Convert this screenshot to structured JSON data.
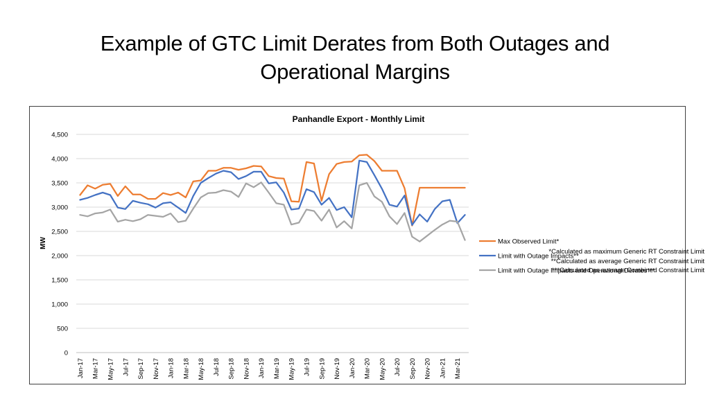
{
  "slide": {
    "title_line1": "Example of GTC Limit Derates from Both Outages and",
    "title_line2": "Operational Margins"
  },
  "footnotes": [
    "*Calculated as maximum Generic RT Constraint Limit",
    "**Calculated as average Generic RT Constraint Limit",
    "***Calculated as average Combined Constraint Limit"
  ],
  "chart_data": {
    "type": "line",
    "title": "Panhandle Export - Monthly Limit",
    "xlabel": "",
    "ylabel": "MW",
    "ylim": [
      0,
      4500
    ],
    "yticks": [
      0,
      500,
      1000,
      1500,
      2000,
      2500,
      3000,
      3500,
      4000,
      4500
    ],
    "ytick_labels": [
      "0",
      "500",
      "1,000",
      "1,500",
      "2,000",
      "2,500",
      "3,000",
      "3,500",
      "4,000",
      "4,500"
    ],
    "grid": true,
    "legend_position": "right",
    "categories": [
      "Jan-17",
      "Feb-17",
      "Mar-17",
      "Apr-17",
      "May-17",
      "Jun-17",
      "Jul-17",
      "Aug-17",
      "Sep-17",
      "Oct-17",
      "Nov-17",
      "Dec-17",
      "Jan-18",
      "Feb-18",
      "Mar-18",
      "Apr-18",
      "May-18",
      "Jun-18",
      "Jul-18",
      "Aug-18",
      "Sep-18",
      "Oct-18",
      "Nov-18",
      "Dec-18",
      "Jan-19",
      "Feb-19",
      "Mar-19",
      "Apr-19",
      "May-19",
      "Jun-19",
      "Jul-19",
      "Aug-19",
      "Sep-19",
      "Oct-19",
      "Nov-19",
      "Dec-19",
      "Jan-20",
      "Feb-20",
      "Mar-20",
      "Apr-20",
      "May-20",
      "Jun-20",
      "Jul-20",
      "Aug-20",
      "Sep-20",
      "Oct-20",
      "Nov-20",
      "Dec-20",
      "Jan-21",
      "Feb-21",
      "Mar-21",
      "Apr-21"
    ],
    "visible_tick_labels": [
      "Jan-17",
      "Mar-17",
      "May-17",
      "Jul-17",
      "Sep-17",
      "Nov-17",
      "Jan-18",
      "Mar-18",
      "May-18",
      "Jul-18",
      "Sep-18",
      "Nov-18",
      "Jan-19",
      "Mar-19",
      "May-19",
      "Jul-19",
      "Sep-19",
      "Nov-19",
      "Jan-20",
      "Mar-20",
      "May-20",
      "Jul-20",
      "Sep-20",
      "Nov-20",
      "Jan-21",
      "Mar-21"
    ],
    "series": [
      {
        "name": "Max Observed Limit*",
        "color": "#ED7D31",
        "values": [
          3250,
          3450,
          3380,
          3460,
          3480,
          3230,
          3430,
          3260,
          3260,
          3170,
          3170,
          3290,
          3250,
          3300,
          3200,
          3530,
          3550,
          3750,
          3750,
          3810,
          3810,
          3770,
          3800,
          3850,
          3840,
          3640,
          3600,
          3590,
          3120,
          3110,
          3930,
          3900,
          3130,
          3680,
          3890,
          3930,
          3940,
          4070,
          4080,
          3950,
          3750,
          3750,
          3750,
          3390,
          2620,
          3400,
          3400,
          3400,
          3400,
          3400,
          3400,
          3400
        ]
      },
      {
        "name": "Limit with Outage Impacts**",
        "color": "#4472C4",
        "values": [
          3150,
          3190,
          3250,
          3300,
          3250,
          2990,
          2960,
          3130,
          3090,
          3060,
          2990,
          3080,
          3100,
          2990,
          2880,
          3230,
          3500,
          3600,
          3690,
          3750,
          3720,
          3580,
          3640,
          3730,
          3730,
          3490,
          3510,
          3300,
          2950,
          2970,
          3370,
          3310,
          3050,
          3190,
          2940,
          3000,
          2790,
          3960,
          3930,
          3660,
          3380,
          3050,
          3010,
          3240,
          2630,
          2850,
          2700,
          2960,
          3120,
          3150,
          2670,
          2840
        ]
      },
      {
        "name": "Limit with Outage Impacts and Operational Derates***",
        "color": "#A5A5A5",
        "values": [
          2840,
          2810,
          2870,
          2890,
          2950,
          2700,
          2740,
          2710,
          2750,
          2840,
          2820,
          2800,
          2870,
          2690,
          2720,
          2970,
          3200,
          3290,
          3300,
          3350,
          3320,
          3210,
          3490,
          3410,
          3510,
          3300,
          3080,
          3050,
          2640,
          2680,
          2950,
          2920,
          2720,
          2950,
          2580,
          2710,
          2560,
          3450,
          3500,
          3220,
          3110,
          2810,
          2650,
          2880,
          2390,
          2290,
          2410,
          2530,
          2640,
          2720,
          2700,
          2320
        ]
      }
    ]
  }
}
